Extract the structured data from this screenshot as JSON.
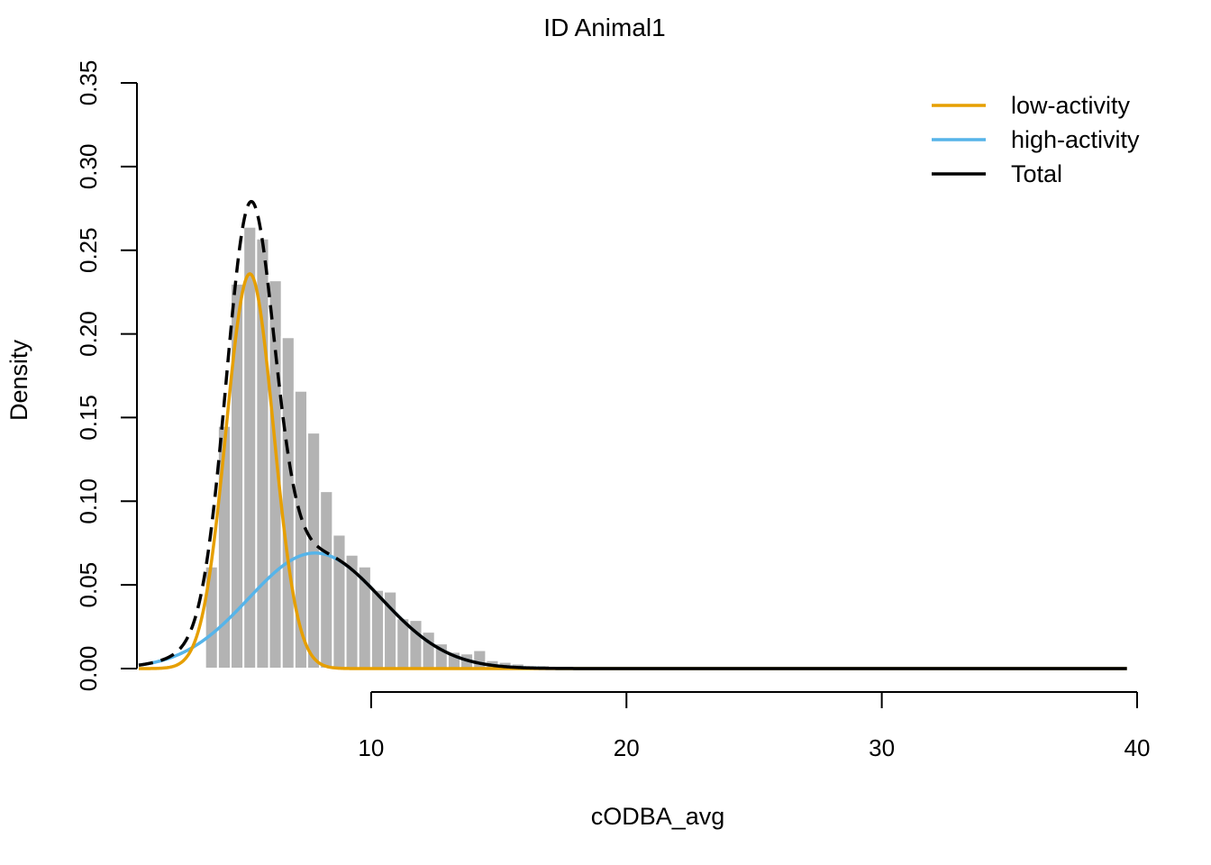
{
  "chart_data": {
    "type": "histogram",
    "title": "ID Animal1",
    "xlabel": "cODBA_avg",
    "ylabel": "Density",
    "xlim": [
      0.9,
      40
    ],
    "ylim": [
      0,
      0.35
    ],
    "x_ticks": [
      10,
      20,
      30,
      40
    ],
    "x_tick_labels": [
      "10",
      "20",
      "30",
      "40"
    ],
    "y_ticks": [
      0,
      0.05,
      0.1,
      0.15,
      0.2,
      0.25,
      0.3,
      0.35
    ],
    "y_tick_labels": [
      "0.00",
      "0.05",
      "0.10",
      "0.15",
      "0.20",
      "0.25",
      "0.30",
      "0.35"
    ],
    "grid": false,
    "legend_position": "top-right",
    "histogram": {
      "bin_width": 0.5,
      "bin_starts": [
        3.5,
        4.0,
        4.5,
        5.0,
        5.5,
        6.0,
        6.5,
        7.0,
        7.5,
        8.0,
        8.5,
        9.0,
        9.5,
        10.0,
        10.5,
        11.0,
        11.5,
        12.0,
        12.5,
        13.0,
        13.5,
        14.0,
        14.5,
        15.0,
        15.5,
        16.0,
        16.5,
        17.0
      ],
      "density": [
        0.061,
        0.145,
        0.23,
        0.264,
        0.257,
        0.232,
        0.198,
        0.166,
        0.141,
        0.106,
        0.08,
        0.068,
        0.061,
        0.047,
        0.046,
        0.03,
        0.029,
        0.022,
        0.015,
        0.01,
        0.009,
        0.011,
        0.005,
        0.004,
        0.003,
        0.002,
        0.002,
        0.001
      ],
      "color": "#b3b3b3"
    },
    "series": [
      {
        "name": "low-activity",
        "color": "#e69f00",
        "distribution": "normal",
        "mean": 5.25,
        "sd": 0.93,
        "weight": 0.55,
        "style": "solid"
      },
      {
        "name": "high-activity",
        "color": "#56b4e9",
        "distribution": "normal",
        "mean": 7.8,
        "sd": 2.6,
        "weight": 0.45,
        "style": "solid"
      },
      {
        "name": "Total",
        "color": "#000000",
        "style": "dashed-then-solid",
        "dash_until_x": 8.7
      }
    ],
    "legend": [
      {
        "label": "low-activity",
        "color": "#e69f00"
      },
      {
        "label": "high-activity",
        "color": "#56b4e9"
      },
      {
        "label": "Total",
        "color": "#000000"
      }
    ]
  }
}
